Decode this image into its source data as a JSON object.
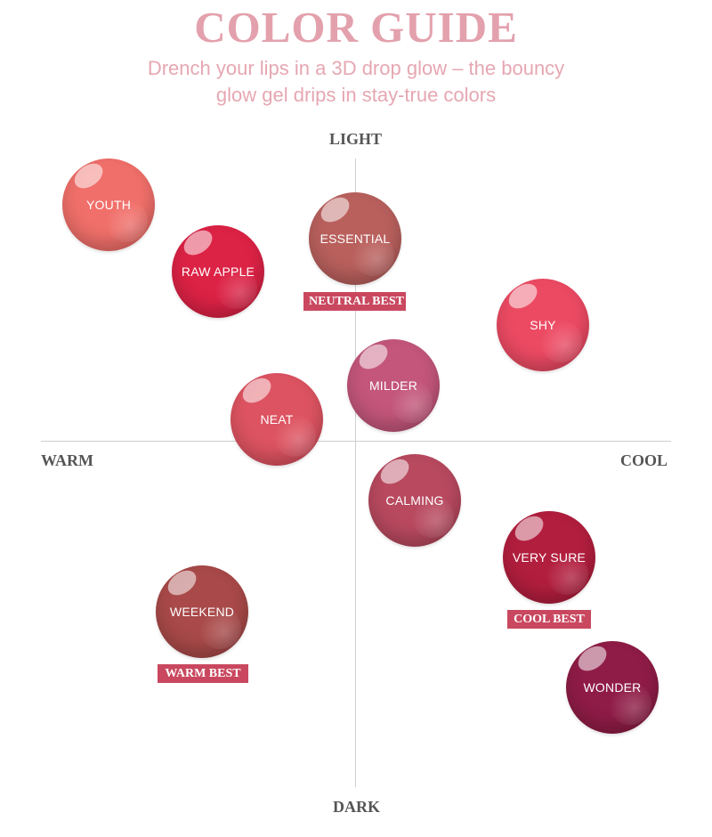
{
  "header": {
    "title": "COLOR GUIDE",
    "subtitle_line1": "Drench your lips in a 3D drop glow – the bouncy",
    "subtitle_line2": "glow gel drips in stay-true colors"
  },
  "axes": {
    "top": "LIGHT",
    "bottom": "DARK",
    "left": "WARM",
    "right": "COOL"
  },
  "shades": [
    {
      "name": "YOUTH",
      "color": "#f06f6a"
    },
    {
      "name": "RAW APPLE",
      "color": "#dc2245"
    },
    {
      "name": "ESSENTIAL",
      "color": "#b9605d"
    },
    {
      "name": "SHY",
      "color": "#ec4a63"
    },
    {
      "name": "MILDER",
      "color": "#c3567a"
    },
    {
      "name": "NEAT",
      "color": "#dd5361"
    },
    {
      "name": "CALMING",
      "color": "#b8495f"
    },
    {
      "name": "VERY SURE",
      "color": "#b21e3e"
    },
    {
      "name": "WEEKEND",
      "color": "#a94949"
    },
    {
      "name": "WONDER",
      "color": "#8f1c46"
    }
  ],
  "badges": {
    "neutral": "NEUTRAL BEST",
    "cool": "COOL BEST",
    "warm": "WARM BEST"
  },
  "colors": {
    "title": "#e3a1ad",
    "badge": "#c9485f",
    "axis": "#cfcfcf"
  }
}
